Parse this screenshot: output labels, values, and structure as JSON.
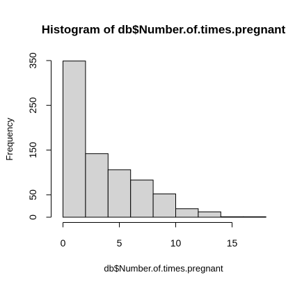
{
  "chart_data": {
    "type": "bar",
    "title": "Histogram of db$Number.of.times.pregnant",
    "xlabel": "db$Number.of.times.pregnant",
    "ylabel": "Frequency",
    "bins": [
      {
        "from": 0,
        "to": 2,
        "count": 349
      },
      {
        "from": 2,
        "to": 4,
        "count": 142
      },
      {
        "from": 4,
        "to": 6,
        "count": 106
      },
      {
        "from": 6,
        "to": 8,
        "count": 83
      },
      {
        "from": 8,
        "to": 10,
        "count": 52
      },
      {
        "from": 10,
        "to": 12,
        "count": 19
      },
      {
        "from": 12,
        "to": 14,
        "count": 12
      },
      {
        "from": 14,
        "to": 16,
        "count": 1
      },
      {
        "from": 16,
        "to": 18,
        "count": 1
      }
    ],
    "xlim": [
      0,
      18
    ],
    "ylim": [
      0,
      350
    ],
    "x_ticks": [
      0,
      5,
      10,
      15
    ],
    "x_tick_labels": [
      "0",
      "5",
      "10",
      "15"
    ],
    "y_ticks": [
      0,
      50,
      150,
      250,
      350
    ],
    "y_tick_labels": [
      "0",
      "50",
      "150",
      "250",
      "350"
    ],
    "bar_fill": "#d3d3d3",
    "bar_stroke": "#000000",
    "grid": false
  }
}
